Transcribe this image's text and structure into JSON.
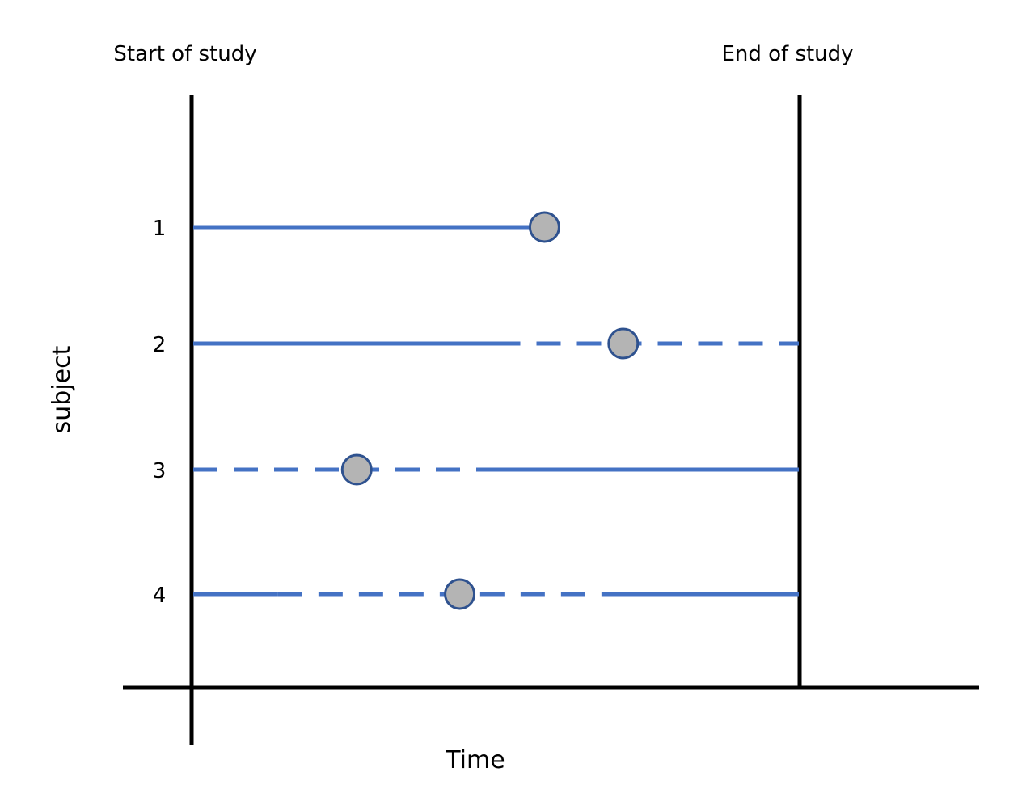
{
  "labels": {
    "start": "Start of study",
    "end": "End of study",
    "x_axis": "Time",
    "y_axis": "subject"
  },
  "subjects": [
    {
      "id": "1",
      "segments": [
        {
          "start": 0.0,
          "end": 0.58,
          "style": "solid"
        }
      ],
      "event": 0.58
    },
    {
      "id": "2",
      "segments": [
        {
          "start": 0.0,
          "end": 0.5,
          "style": "solid"
        },
        {
          "start": 0.5,
          "end": 1.0,
          "style": "dashed"
        }
      ],
      "event": 0.71
    },
    {
      "id": "3",
      "segments": [
        {
          "start": 0.0,
          "end": 0.5,
          "style": "dashed"
        },
        {
          "start": 0.5,
          "end": 1.0,
          "style": "solid"
        }
      ],
      "event": 0.27
    },
    {
      "id": "4",
      "segments": [
        {
          "start": 0.0,
          "end": 0.14,
          "style": "solid"
        },
        {
          "start": 0.14,
          "end": 0.71,
          "style": "dashed"
        },
        {
          "start": 0.71,
          "end": 1.0,
          "style": "solid"
        }
      ],
      "event": 0.44
    }
  ],
  "colors": {
    "line": "#4472C4",
    "marker_fill": "#B4B4B4",
    "marker_stroke": "#2F528F",
    "axis": "#000000"
  }
}
